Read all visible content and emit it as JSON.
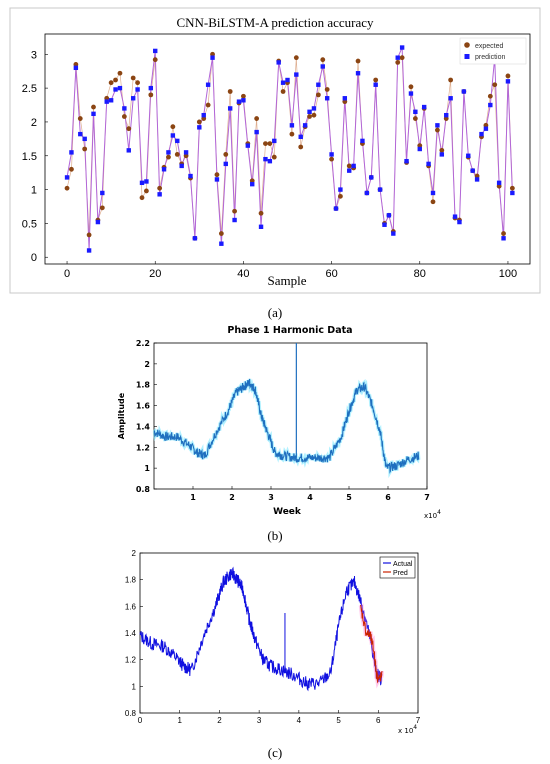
{
  "figure": {
    "caption_a": "(a)",
    "caption_b": "(b)",
    "caption_c": "(c)"
  },
  "chart_data": [
    {
      "type": "scatter",
      "title": "CNN-BiLSTM-A prediction accuracy",
      "xlabel": "Sample",
      "ylabel": "",
      "xlim": [
        -5,
        105
      ],
      "ylim": [
        -0.1,
        3.3
      ],
      "xticks": [
        "0",
        "20",
        "40",
        "60",
        "80",
        "100"
      ],
      "yticks": [
        "0",
        "0.5",
        "1",
        "1.5",
        "2",
        "2.5",
        "3"
      ],
      "legend": "top-right",
      "grid": false,
      "colors": {
        "expected": "#8b4513",
        "prediction": "#1a1aff",
        "line": "#b266d9"
      },
      "series": [
        {
          "name": "expected",
          "values": [
            1.02,
            1.3,
            2.85,
            2.05,
            1.6,
            0.33,
            2.22,
            0.55,
            0.73,
            2.35,
            2.58,
            2.62,
            2.72,
            2.08,
            1.9,
            2.65,
            2.58,
            0.88,
            0.98,
            2.4,
            2.92,
            1.02,
            1.33,
            1.48,
            1.93,
            1.52,
            1.38,
            1.5,
            1.17,
            0.28,
            2.0,
            2.05,
            2.25,
            3.0,
            1.22,
            0.35,
            1.52,
            2.45,
            0.68,
            2.28,
            2.38,
            1.68,
            1.13,
            2.05,
            0.65,
            1.68,
            1.68,
            1.48,
            2.9,
            2.45,
            2.58,
            1.82,
            2.95,
            1.63,
            1.93,
            2.08,
            2.1,
            2.4,
            2.92,
            2.48,
            1.45,
            0.72,
            0.9,
            2.3,
            1.35,
            1.32,
            2.9,
            1.68,
            0.95,
            1.18,
            2.62,
            1.0,
            0.5,
            0.62,
            0.38,
            2.88,
            2.95,
            1.4,
            2.52,
            2.05,
            1.65,
            2.2,
            1.35,
            0.82,
            1.88,
            1.58,
            2.05,
            2.62,
            0.58,
            0.55,
            2.45,
            1.48,
            1.28,
            1.2,
            1.78,
            1.95,
            2.38,
            2.55,
            1.05,
            0.35,
            2.68,
            1.02
          ]
        },
        {
          "name": "prediction",
          "values": [
            1.18,
            1.55,
            2.8,
            1.82,
            1.75,
            0.1,
            2.12,
            0.52,
            0.95,
            2.3,
            2.32,
            2.48,
            2.5,
            2.2,
            1.58,
            2.35,
            2.48,
            1.1,
            1.12,
            2.5,
            3.05,
            0.93,
            1.3,
            1.55,
            1.8,
            1.72,
            1.35,
            1.55,
            1.2,
            0.28,
            1.92,
            2.1,
            2.55,
            2.95,
            1.15,
            0.2,
            1.38,
            2.2,
            0.55,
            2.3,
            2.32,
            1.65,
            1.08,
            1.85,
            0.45,
            1.45,
            1.42,
            1.72,
            2.88,
            2.58,
            2.62,
            1.95,
            2.7,
            1.78,
            1.95,
            2.15,
            2.2,
            2.55,
            2.82,
            2.35,
            1.52,
            0.72,
            1.0,
            2.35,
            1.28,
            1.35,
            2.72,
            1.72,
            0.95,
            1.18,
            2.55,
            1.0,
            0.48,
            0.62,
            0.35,
            2.95,
            3.1,
            1.42,
            2.42,
            2.15,
            1.6,
            2.22,
            1.38,
            0.95,
            1.95,
            1.52,
            2.1,
            2.35,
            0.6,
            0.52,
            2.45,
            1.5,
            1.28,
            1.15,
            1.82,
            1.9,
            2.25,
            2.95,
            1.1,
            0.28,
            2.6,
            0.95
          ]
        }
      ]
    },
    {
      "type": "line",
      "title": "Phase 1 Harmonic Data",
      "xlabel": "Week",
      "ylabel": "Amplitude",
      "x_multiplier": "x10",
      "x_multiplier_exp": "4",
      "xlim": [
        0,
        7
      ],
      "ylim": [
        0.8,
        2.2
      ],
      "xticks": [
        "1",
        "2",
        "3",
        "4",
        "5",
        "6",
        "7"
      ],
      "yticks": [
        "0.8",
        "1",
        "1.2",
        "1.4",
        "1.6",
        "1.8",
        "2",
        "2.2"
      ],
      "grid": false,
      "colors": {
        "series": "#1f6fbf",
        "band": "#7fe8ff",
        "spike": "#1f6fbf"
      },
      "series": [
        {
          "x": [
            0,
            0.3,
            0.6,
            0.9,
            1.1,
            1.3,
            1.6,
            1.9,
            2.1,
            2.3,
            2.45,
            2.6,
            2.75,
            2.9,
            3.1,
            3.3,
            3.6,
            3.9,
            4.2,
            4.5,
            4.8,
            5.0,
            5.2,
            5.4,
            5.6,
            5.8,
            5.95,
            6.2,
            6.5,
            6.8
          ],
          "values": [
            1.35,
            1.3,
            1.3,
            1.22,
            1.15,
            1.12,
            1.35,
            1.55,
            1.72,
            1.78,
            1.82,
            1.75,
            1.5,
            1.35,
            1.15,
            1.12,
            1.1,
            1.1,
            1.1,
            1.1,
            1.3,
            1.55,
            1.75,
            1.78,
            1.6,
            1.35,
            1.0,
            1.02,
            1.08,
            1.12
          ]
        }
      ],
      "spike": {
        "x": 3.65,
        "from": 1.1,
        "to": 2.2
      }
    },
    {
      "type": "line",
      "title": "",
      "xlabel": "",
      "ylabel": "",
      "x_multiplier": "x 10",
      "x_multiplier_exp": "4",
      "xlim": [
        0,
        7
      ],
      "ylim": [
        0.8,
        2.0
      ],
      "xticks": [
        "0",
        "1",
        "2",
        "3",
        "4",
        "5",
        "6",
        "7"
      ],
      "yticks": [
        "0.8",
        "1",
        "1.2",
        "1.4",
        "1.6",
        "1.8",
        "2"
      ],
      "legend": "top-right",
      "grid": false,
      "colors": {
        "actual": "#1010e0",
        "pred": "#cc2200",
        "band": "#ff66cc"
      },
      "series": [
        {
          "name": "Actual",
          "x": [
            0,
            0.3,
            0.6,
            0.9,
            1.1,
            1.3,
            1.6,
            1.9,
            2.1,
            2.3,
            2.45,
            2.6,
            2.75,
            2.9,
            3.1,
            3.3,
            3.6,
            3.9,
            4.2,
            4.5,
            4.8,
            5.0,
            5.2,
            5.4,
            5.6,
            5.8,
            5.95,
            6.1
          ],
          "values": [
            1.38,
            1.32,
            1.3,
            1.22,
            1.15,
            1.12,
            1.38,
            1.6,
            1.78,
            1.85,
            1.8,
            1.72,
            1.5,
            1.35,
            1.2,
            1.15,
            1.12,
            1.08,
            1.02,
            1.02,
            1.1,
            1.45,
            1.72,
            1.78,
            1.6,
            1.35,
            1.1,
            1.05
          ]
        },
        {
          "name": "Pred",
          "x": [
            5.55,
            5.7,
            5.8,
            5.9,
            5.95,
            6.0,
            6.1
          ],
          "values": [
            1.6,
            1.4,
            1.38,
            1.25,
            1.1,
            1.05,
            1.08
          ]
        }
      ],
      "spike": {
        "x": 3.65,
        "from": 1.1,
        "to": 1.55
      }
    }
  ]
}
